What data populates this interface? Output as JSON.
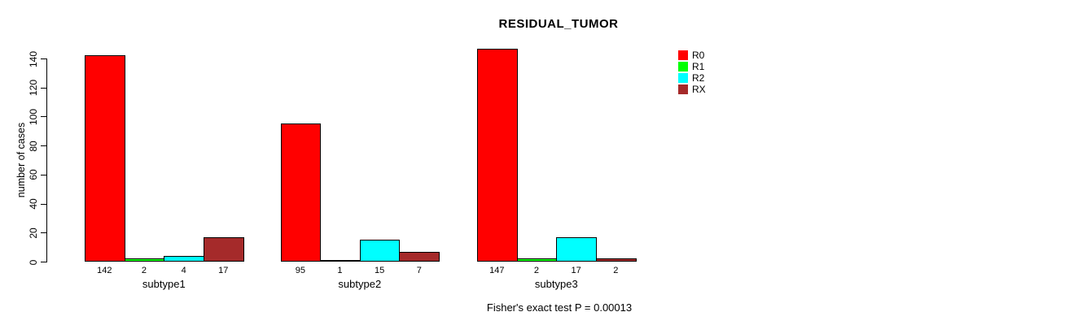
{
  "chart_data": {
    "type": "bar",
    "title": "RESIDUAL_TUMOR",
    "ylabel": "number of cases",
    "xlabel": "",
    "footnote": "Fisher's exact test P = 0.00013",
    "ylim": [
      0,
      140
    ],
    "yticks": [
      0,
      20,
      40,
      60,
      80,
      100,
      120,
      140
    ],
    "grid": false,
    "legend_position": "top-right",
    "bar_border_color": "#000000",
    "categories": [
      "subtype1",
      "subtype2",
      "subtype3"
    ],
    "series": [
      {
        "name": "R0",
        "color": "#ff0000",
        "values": [
          142,
          95,
          147
        ]
      },
      {
        "name": "R1",
        "color": "#00ff00",
        "values": [
          2,
          1,
          2
        ]
      },
      {
        "name": "R2",
        "color": "#00ffff",
        "values": [
          4,
          15,
          17
        ]
      },
      {
        "name": "RX",
        "color": "#a52a2a",
        "values": [
          17,
          7,
          2
        ]
      }
    ]
  }
}
